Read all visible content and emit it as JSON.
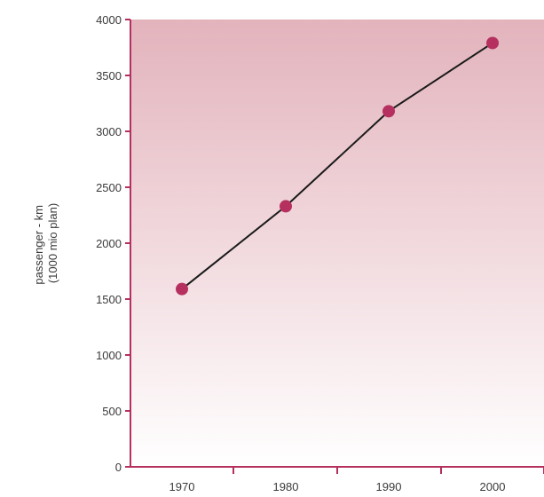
{
  "chart_data": {
    "type": "line",
    "title": "",
    "xlabel": "",
    "ylabel": [
      "passenger - km",
      "(1000 mio plan)"
    ],
    "x": [
      "1970",
      "1980",
      "1990",
      "2000"
    ],
    "series": [
      {
        "values": [
          1590,
          2330,
          3180,
          3790
        ]
      }
    ],
    "ylim": [
      0,
      4000
    ],
    "yticks": [
      0,
      500,
      1000,
      1500,
      2000,
      2500,
      3000,
      3500,
      4000
    ],
    "grid": false,
    "legend": "none",
    "colors": {
      "axis": "#b5305f",
      "marker": "#b5305f",
      "line": "#1a1a1a",
      "bg_top": "#e3b3bc",
      "bg_bottom": "#ffffff"
    }
  }
}
